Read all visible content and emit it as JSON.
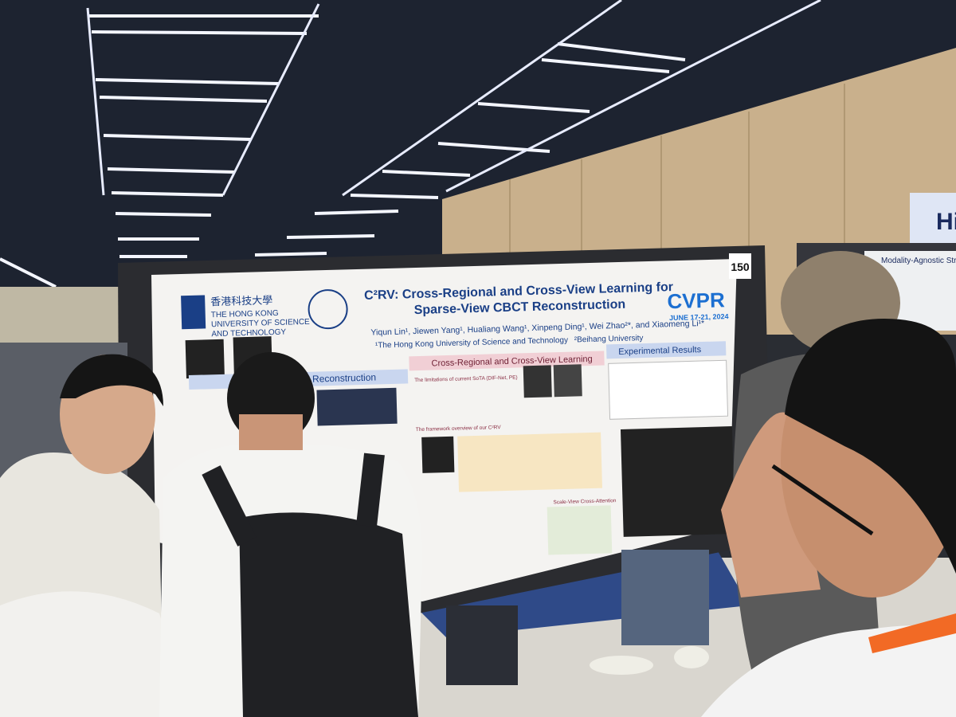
{
  "venue_sign": "Hi",
  "neighbor_poster": "Modality-Agnostic Structur",
  "poster": {
    "board_number": "150",
    "university_cn": "香港科技大學",
    "university_en_1": "THE HONG KONG",
    "university_en_2": "UNIVERSITY OF SCIENCE",
    "university_en_3": "AND TECHNOLOGY",
    "title_1": "C²RV: Cross-Regional and Cross-View Learning for",
    "title_2": "Sparse-View CBCT Reconstruction",
    "authors": "Yiqun Lin¹, Jiewen Yang¹, Hualiang Wang¹, Xinpeng Ding¹, Wei Zhao²*, and Xiaomeng Li¹*",
    "affiliation_1": "¹The Hong Kong University of Science and Technology",
    "affiliation_2": "²Beihang University",
    "conference": "CVPR",
    "dates": "JUNE 17-21, 2024",
    "section_left": "Reconstruction",
    "section_middle": "Cross-Regional and Cross-View Learning",
    "section_right": "Experimental Results",
    "subsection_1": "The limitations of current SoTA (DIF-Net, PE)",
    "subsection_2": "The framework overview of our C²RV",
    "subsection_3": "Scale-View Cross-Attention"
  }
}
